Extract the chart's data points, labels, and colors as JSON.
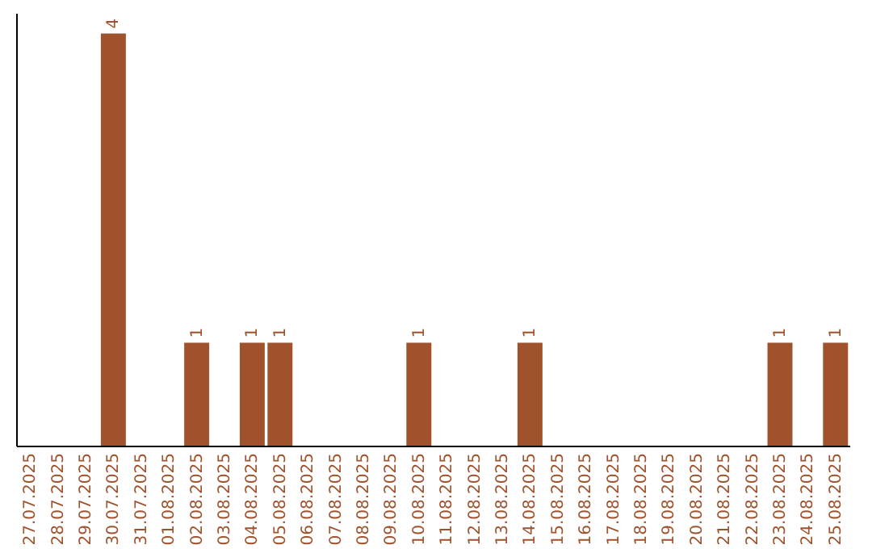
{
  "chart_data": {
    "type": "bar",
    "categories": [
      "27.07.2025",
      "28.07.2025",
      "29.07.2025",
      "30.07.2025",
      "31.07.2025",
      "01.08.2025",
      "02.08.2025",
      "03.08.2025",
      "04.08.2025",
      "05.08.2025",
      "06.08.2025",
      "07.08.2025",
      "08.08.2025",
      "09.08.2025",
      "10.08.2025",
      "11.08.2025",
      "12.08.2025",
      "13.08.2025",
      "14.08.2025",
      "15.08.2025",
      "16.08.2025",
      "17.08.2025",
      "18.08.2025",
      "19.08.2025",
      "20.08.2025",
      "21.08.2025",
      "22.08.2025",
      "23.08.2025",
      "24.08.2025",
      "25.08.2025"
    ],
    "values": [
      0,
      0,
      0,
      4,
      0,
      0,
      1,
      0,
      1,
      1,
      0,
      0,
      0,
      0,
      1,
      0,
      0,
      0,
      1,
      0,
      0,
      0,
      0,
      0,
      0,
      0,
      0,
      1,
      0,
      1
    ],
    "value_labels": [
      null,
      null,
      null,
      "4",
      null,
      null,
      "1",
      null,
      "1",
      "1",
      null,
      null,
      null,
      null,
      "1",
      null,
      null,
      null,
      "1",
      null,
      null,
      null,
      null,
      null,
      null,
      null,
      null,
      "1",
      null,
      "1"
    ],
    "color": "#a0522d",
    "ylim": [
      0,
      4.2
    ],
    "tick_labels": "x",
    "grid": false
  }
}
